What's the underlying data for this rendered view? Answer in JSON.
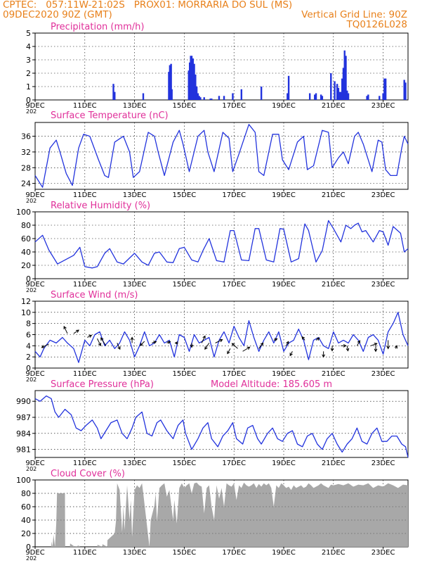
{
  "header": {
    "line1_left": "CPTEC:   057:11W-21:02S   PROX01: MORRARIA DO SUL (MS)",
    "line2_left": "09DEC2020 90Z (GMT)",
    "line2_right": "Vertical Grid Line: 90Z",
    "line3_right": "TQ0126L028"
  },
  "colors": {
    "header": "#e8801a",
    "panel_title": "#e0309a",
    "series": "#2233dd",
    "cloud": "#a8a8a8",
    "wind_arrow": "#000000"
  },
  "x_axis": {
    "start_day": 9,
    "end_day": 24,
    "ticks": [
      {
        "day": 9,
        "label": "9DEC"
      },
      {
        "day": 11,
        "label": "11DEC"
      },
      {
        "day": 13,
        "label": "13DEC"
      },
      {
        "day": 15,
        "label": "15DEC"
      },
      {
        "day": 17,
        "label": "17DEC"
      },
      {
        "day": 19,
        "label": "19DEC"
      },
      {
        "day": 21,
        "label": "21DEC"
      },
      {
        "day": 23,
        "label": "23DEC"
      }
    ],
    "year_marker": "202"
  },
  "chart_data": [
    {
      "id": "precip",
      "type": "bar",
      "title": "Precipitation (mm/h)",
      "ylim": [
        0,
        5
      ],
      "yticks": [
        0,
        1,
        2,
        3,
        4,
        5
      ],
      "grid": true,
      "x_unit": "day of December 2020",
      "x": [
        12.15,
        12.2,
        13.35,
        14.38,
        14.42,
        14.47,
        14.5,
        15.18,
        15.22,
        15.26,
        15.3,
        15.35,
        15.4,
        15.45,
        15.5,
        15.55,
        15.6,
        15.65,
        15.8,
        16.05,
        16.1,
        16.4,
        16.6,
        16.95,
        17.3,
        18.1,
        19.15,
        19.2,
        20.05,
        20.25,
        20.3,
        20.5,
        20.55,
        20.9,
        21.05,
        21.15,
        21.2,
        21.25,
        21.3,
        21.35,
        21.4,
        21.45,
        21.5,
        21.55,
        21.6,
        22.35,
        22.4,
        22.85,
        23.0,
        23.05,
        23.1,
        23.85,
        23.9
      ],
      "values": [
        1.2,
        0.6,
        0.5,
        2.1,
        2.6,
        2.7,
        0.8,
        2.2,
        2.8,
        3.3,
        3.3,
        3.1,
        2.7,
        1.9,
        1.0,
        0.5,
        0.3,
        0.2,
        0.2,
        0.1,
        0.1,
        0.3,
        0.3,
        0.5,
        0.8,
        1.0,
        0.5,
        1.8,
        0.5,
        0.4,
        0.5,
        0.4,
        0.3,
        2.0,
        1.4,
        1.2,
        0.9,
        0.6,
        0.6,
        1.6,
        2.4,
        3.7,
        3.3,
        0.7,
        0.5,
        0.3,
        0.4,
        0.3,
        0.5,
        1.6,
        1.6,
        1.5,
        1.3
      ]
    },
    {
      "id": "temp",
      "type": "line",
      "title": "Surface Temperature (nC)",
      "ylim": [
        22.5,
        39.5
      ],
      "yticks": [
        24,
        28,
        32,
        36
      ],
      "grid": true,
      "x_unit": "day of December 2020",
      "x": [
        9.0,
        9.3,
        9.6,
        9.85,
        10.0,
        10.25,
        10.5,
        10.75,
        10.95,
        11.2,
        11.55,
        11.8,
        11.95,
        12.2,
        12.55,
        12.8,
        12.95,
        13.2,
        13.55,
        13.8,
        13.95,
        14.2,
        14.55,
        14.8,
        14.95,
        15.2,
        15.55,
        15.8,
        15.95,
        16.2,
        16.55,
        16.8,
        16.95,
        17.2,
        17.6,
        17.85,
        18.0,
        18.2,
        18.55,
        18.8,
        18.95,
        19.2,
        19.55,
        19.8,
        19.95,
        20.2,
        20.55,
        20.8,
        20.95,
        21.2,
        21.4,
        21.6,
        21.85,
        22.0,
        22.2,
        22.55,
        22.8,
        22.95,
        23.1,
        23.3,
        23.55,
        23.75,
        23.85,
        24.0
      ],
      "values": [
        26,
        23,
        33,
        35,
        32,
        26.5,
        23.5,
        33,
        36.5,
        36,
        30,
        26,
        25.5,
        34.5,
        36,
        32,
        25.5,
        27,
        37,
        36,
        32,
        26,
        34.5,
        37.5,
        34,
        27,
        36,
        37.5,
        32,
        27,
        37,
        35.5,
        27,
        31.5,
        39,
        37,
        27,
        26,
        36.5,
        36.5,
        30,
        27.5,
        34.5,
        36,
        27.5,
        28.5,
        37.5,
        37,
        28,
        30.5,
        32,
        29,
        36,
        37,
        34,
        27,
        35,
        34.5,
        27.5,
        26,
        26,
        33,
        36,
        34
      ]
    },
    {
      "id": "rh",
      "type": "line",
      "title": "Relative Humidity (%)",
      "ylim": [
        0,
        100
      ],
      "yticks": [
        0,
        20,
        40,
        60,
        80,
        100
      ],
      "grid": true,
      "x_unit": "day of December 2020",
      "x": [
        9.0,
        9.3,
        9.55,
        9.9,
        10.2,
        10.55,
        10.8,
        11.0,
        11.3,
        11.5,
        11.8,
        12.0,
        12.3,
        12.55,
        12.8,
        13.0,
        13.3,
        13.55,
        13.8,
        14.0,
        14.3,
        14.55,
        14.8,
        15.0,
        15.3,
        15.55,
        15.75,
        16.0,
        16.3,
        16.6,
        16.85,
        17.0,
        17.3,
        17.6,
        17.85,
        18.0,
        18.3,
        18.6,
        18.85,
        19.0,
        19.3,
        19.6,
        19.85,
        20.0,
        20.3,
        20.55,
        20.8,
        21.0,
        21.3,
        21.5,
        21.7,
        21.85,
        22.0,
        22.15,
        22.3,
        22.6,
        22.85,
        23.0,
        23.2,
        23.4,
        23.7,
        23.85,
        24.0
      ],
      "values": [
        55,
        65,
        43,
        22,
        28,
        35,
        47,
        18,
        16,
        18,
        38,
        45,
        25,
        22,
        31,
        38,
        25,
        20,
        38,
        40,
        25,
        24,
        45,
        47,
        28,
        25,
        42,
        60,
        27,
        25,
        72,
        72,
        28,
        27,
        75,
        75,
        28,
        25,
        75,
        74,
        25,
        30,
        82,
        72,
        25,
        42,
        87,
        75,
        55,
        80,
        75,
        80,
        83,
        70,
        72,
        55,
        72,
        70,
        50,
        78,
        68,
        40,
        45
      ]
    },
    {
      "id": "wind",
      "type": "line",
      "title": "Surface Wind (m/s)",
      "ylim": [
        0,
        12
      ],
      "yticks": [
        0,
        2,
        4,
        6,
        8,
        10,
        12
      ],
      "grid": true,
      "x_unit": "day of December 2020",
      "x": [
        9.0,
        9.2,
        9.35,
        9.6,
        9.85,
        10.1,
        10.3,
        10.55,
        10.75,
        11.0,
        11.2,
        11.4,
        11.6,
        11.8,
        12.0,
        12.2,
        12.4,
        12.6,
        12.8,
        13.0,
        13.2,
        13.4,
        13.6,
        13.8,
        14.0,
        14.2,
        14.4,
        14.6,
        14.8,
        15.0,
        15.2,
        15.4,
        15.6,
        15.8,
        16.0,
        16.2,
        16.4,
        16.6,
        16.8,
        17.0,
        17.2,
        17.4,
        17.6,
        17.8,
        18.0,
        18.2,
        18.4,
        18.6,
        18.8,
        19.0,
        19.2,
        19.4,
        19.6,
        19.8,
        20.0,
        20.2,
        20.4,
        20.6,
        20.8,
        21.0,
        21.2,
        21.4,
        21.6,
        21.8,
        22.0,
        22.2,
        22.4,
        22.6,
        22.8,
        23.0,
        23.2,
        23.4,
        23.6,
        23.8,
        24.0
      ],
      "values": [
        3,
        2,
        3.5,
        5,
        4.5,
        5.5,
        4.5,
        3.5,
        1,
        5,
        4,
        6,
        6.5,
        4,
        5,
        3.5,
        4.5,
        6.5,
        5,
        2,
        4,
        6.5,
        4,
        4.5,
        6,
        4.5,
        5,
        2,
        6,
        5.5,
        3,
        6,
        4.5,
        5,
        5.5,
        2,
        5,
        6.5,
        4.5,
        7.5,
        5.5,
        4,
        8.5,
        5.5,
        3,
        5,
        6.5,
        4.5,
        6.5,
        3,
        4.5,
        5,
        7,
        5,
        1.5,
        5,
        5.5,
        4,
        3.5,
        6.5,
        4.5,
        5,
        4.5,
        6,
        5,
        3,
        5.5,
        6,
        5,
        2.5,
        6.5,
        8,
        10,
        6,
        4
      ]
    },
    {
      "id": "pressure",
      "type": "line",
      "title": "Surface Pressure (hPa)",
      "ylim": [
        979.5,
        992
      ],
      "yticks": [
        981,
        984,
        987,
        990
      ],
      "grid": true,
      "x_unit": "day of December 2020",
      "x": [
        9.0,
        9.2,
        9.45,
        9.65,
        9.8,
        9.95,
        10.2,
        10.45,
        10.65,
        10.85,
        11.05,
        11.3,
        11.5,
        11.65,
        11.85,
        12.05,
        12.3,
        12.5,
        12.7,
        12.9,
        13.05,
        13.3,
        13.5,
        13.7,
        13.9,
        14.05,
        14.3,
        14.55,
        14.75,
        14.95,
        15.05,
        15.3,
        15.55,
        15.75,
        15.95,
        16.1,
        16.35,
        16.55,
        16.75,
        16.95,
        17.1,
        17.35,
        17.55,
        17.75,
        17.95,
        18.1,
        18.35,
        18.55,
        18.75,
        18.95,
        19.15,
        19.35,
        19.55,
        19.75,
        19.95,
        20.15,
        20.35,
        20.55,
        20.75,
        20.95,
        21.15,
        21.35,
        21.55,
        21.75,
        21.95,
        22.15,
        22.35,
        22.55,
        22.75,
        22.95,
        23.15,
        23.35,
        23.55,
        23.75,
        23.9,
        24.0
      ],
      "values": [
        990.5,
        990,
        991,
        990.5,
        988,
        987,
        988.5,
        987.5,
        985,
        984.5,
        985.5,
        986.5,
        985,
        983,
        984.5,
        986,
        986.5,
        984,
        983,
        985,
        987,
        988,
        984,
        983.5,
        986,
        986.5,
        984.5,
        983,
        985.5,
        986.5,
        984,
        981,
        983,
        985,
        986,
        983,
        981.5,
        983.5,
        984.5,
        986,
        983,
        982,
        985,
        985.5,
        983,
        982,
        984,
        985,
        983,
        982.5,
        984,
        984.5,
        982,
        981.5,
        983.5,
        984,
        982,
        981,
        983,
        984,
        982,
        980.5,
        982,
        983,
        985,
        982.5,
        982,
        984,
        985,
        982.5,
        982.5,
        983.5,
        983.5,
        982,
        981.5,
        979.5
      ]
    },
    {
      "id": "cloud",
      "type": "area",
      "title": "Cloud Cover (%)",
      "ylim": [
        0,
        100
      ],
      "yticks": [
        0,
        20,
        40,
        60,
        80,
        100
      ],
      "grid": true,
      "x_unit": "day of December 2020",
      "x": [
        9.0,
        9.65,
        9.66,
        9.7,
        9.74,
        9.8,
        9.85,
        9.88,
        10.2,
        10.21,
        10.4,
        10.41,
        10.6,
        10.75,
        10.8,
        11.5,
        11.51,
        11.7,
        11.71,
        11.9,
        11.91,
        12.2,
        12.25,
        12.3,
        12.4,
        12.5,
        12.55,
        12.6,
        12.7,
        12.8,
        12.85,
        12.9,
        13.0,
        13.1,
        13.2,
        13.3,
        13.35,
        13.6,
        13.65,
        13.8,
        13.85,
        13.9,
        14.0,
        14.1,
        14.2,
        14.3,
        14.4,
        14.5,
        14.55,
        14.6,
        14.7,
        14.8,
        14.9,
        15.0,
        15.1,
        15.2,
        15.3,
        15.4,
        15.5,
        15.6,
        15.7,
        15.8,
        15.9,
        16.0,
        16.1,
        16.2,
        16.3,
        16.4,
        16.5,
        16.6,
        16.7,
        16.8,
        16.9,
        17.0,
        17.1,
        17.2,
        17.3,
        17.4,
        17.5,
        17.6,
        17.7,
        17.8,
        17.9,
        18.0,
        18.1,
        18.2,
        18.3,
        18.4,
        18.5,
        18.6,
        18.7,
        18.8,
        18.9,
        19.0,
        19.1,
        19.2,
        19.3,
        19.4,
        19.5,
        19.6,
        19.7,
        19.8,
        19.9,
        20.0,
        20.1,
        20.2,
        20.3,
        20.4,
        20.5,
        20.6,
        20.7,
        20.8,
        20.9,
        21.0,
        21.2,
        21.4,
        21.6,
        21.8,
        22.0,
        22.2,
        22.4,
        22.6,
        22.8,
        23.0,
        23.2,
        23.4,
        23.6,
        23.8,
        24.0
      ],
      "values": [
        0,
        0,
        8,
        0,
        18,
        0,
        35,
        80,
        80,
        0,
        0,
        5,
        0,
        2,
        0,
        0,
        3,
        0,
        4,
        0,
        10,
        20,
        38,
        95,
        85,
        22,
        60,
        25,
        92,
        40,
        70,
        15,
        85,
        92,
        88,
        95,
        80,
        0,
        40,
        62,
        80,
        38,
        88,
        92,
        95,
        75,
        85,
        55,
        40,
        70,
        35,
        88,
        95,
        88,
        92,
        95,
        80,
        95,
        96,
        92,
        90,
        50,
        88,
        92,
        60,
        40,
        92,
        72,
        88,
        60,
        95,
        92,
        90,
        95,
        70,
        92,
        88,
        96,
        92,
        90,
        92,
        95,
        88,
        94,
        90,
        95,
        92,
        95,
        88,
        60,
        92,
        88,
        95,
        92,
        88,
        90,
        85,
        92,
        88,
        90,
        92,
        88,
        90,
        95,
        92,
        88,
        90,
        92,
        95,
        92,
        90,
        88,
        93,
        92,
        94,
        92,
        95,
        90,
        93,
        92,
        95,
        88,
        92,
        90,
        95,
        92,
        88,
        93,
        92
      ]
    }
  ],
  "panel_titles": {
    "precip": "Precipitation (mm/h)",
    "temp": "Surface Temperature (nC)",
    "rh": "Relative Humidity (%)",
    "wind": "Surface Wind (m/s)",
    "pressure": "Surface Pressure (hPa)",
    "pressure_extra": "Model Altitude: 185.605 m",
    "cloud": "Cloud Cover (%)"
  },
  "wind_arrows": {
    "units": "m/s",
    "vectors": [
      {
        "day": 9.55,
        "speed": 4.3,
        "u": -2.5,
        "v": -1.2,
        "y": 4.3
      },
      {
        "day": 10.3,
        "speed": 6.2,
        "u": -1.2,
        "v": 2.5,
        "y": 6.2
      },
      {
        "day": 10.55,
        "speed": 6.2,
        "u": 1.8,
        "v": 1.2,
        "y": 6.2
      },
      {
        "day": 11.1,
        "speed": 5.5,
        "u": 1.5,
        "v": 0.8,
        "y": 5.5
      },
      {
        "day": 11.5,
        "speed": 5.3,
        "u": 1.2,
        "v": -2.5,
        "y": 5.3
      },
      {
        "day": 11.85,
        "speed": 4.0,
        "u": -1.8,
        "v": 2.8,
        "y": 4.0
      },
      {
        "day": 12.3,
        "speed": 4.5,
        "u": 1.0,
        "v": -2.2,
        "y": 4.5
      },
      {
        "day": 12.9,
        "speed": 4.5,
        "u": 0.0,
        "v": 2.0,
        "y": 4.5
      },
      {
        "day": 13.4,
        "speed": 4.8,
        "u": -1.5,
        "v": -1.5,
        "y": 4.8
      },
      {
        "day": 13.7,
        "speed": 4.5,
        "u": 1.5,
        "v": 0.5,
        "y": 4.5
      },
      {
        "day": 14.3,
        "speed": 4.5,
        "u": 1.2,
        "v": 0.5,
        "y": 4.5
      },
      {
        "day": 14.75,
        "speed": 4.5,
        "u": -1.0,
        "v": 0.0,
        "y": 4.5
      },
      {
        "day": 15.3,
        "speed": 4.5,
        "u": 0.0,
        "v": -1.5,
        "y": 4.5
      },
      {
        "day": 15.7,
        "speed": 4.5,
        "u": 1.2,
        "v": 2.5,
        "y": 4.5
      },
      {
        "day": 16.0,
        "speed": 4.5,
        "u": -1.5,
        "v": -2.2,
        "y": 4.5
      },
      {
        "day": 16.25,
        "speed": 4.5,
        "u": 2.5,
        "v": 1.2,
        "y": 4.5
      },
      {
        "day": 16.85,
        "speed": 3.5,
        "u": -1.0,
        "v": -1.8,
        "y": 3.5
      },
      {
        "day": 17.15,
        "speed": 3.5,
        "u": -2.0,
        "v": 1.8,
        "y": 3.5
      },
      {
        "day": 17.35,
        "speed": 3.0,
        "u": 2.5,
        "v": 1.5,
        "y": 3.0
      },
      {
        "day": 18.0,
        "speed": 3.5,
        "u": 1.5,
        "v": 2.0,
        "y": 3.5
      },
      {
        "day": 18.6,
        "speed": 5.0,
        "u": 1.2,
        "v": 0.5,
        "y": 5.0
      },
      {
        "day": 19.1,
        "speed": 4.0,
        "u": 0.8,
        "v": 1.5,
        "y": 4.0
      },
      {
        "day": 19.35,
        "speed": 3.0,
        "u": -0.8,
        "v": -1.5,
        "y": 3.0
      },
      {
        "day": 19.85,
        "speed": 5.0,
        "u": -1.0,
        "v": 1.2,
        "y": 5.0
      },
      {
        "day": 20.3,
        "speed": 5.0,
        "u": 1.2,
        "v": 0.8,
        "y": 5.0
      },
      {
        "day": 20.6,
        "speed": 3.0,
        "u": 0.0,
        "v": -2.0,
        "y": 3.0
      },
      {
        "day": 20.95,
        "speed": 4.0,
        "u": 0.0,
        "v": -1.8,
        "y": 4.0
      },
      {
        "day": 21.3,
        "speed": 4.0,
        "u": 1.8,
        "v": 0.0,
        "y": 4.0
      },
      {
        "day": 21.55,
        "speed": 4.0,
        "u": 0.3,
        "v": -1.8,
        "y": 4.0
      },
      {
        "day": 21.95,
        "speed": 4.0,
        "u": 1.0,
        "v": 1.8,
        "y": 4.0
      },
      {
        "day": 22.5,
        "speed": 4.0,
        "u": 2.2,
        "v": 0.8,
        "y": 4.0
      },
      {
        "day": 22.7,
        "speed": 4.0,
        "u": 0.0,
        "v": -2.0,
        "y": 4.0
      },
      {
        "day": 23.2,
        "speed": 5.0,
        "u": 0.0,
        "v": -3.0,
        "y": 5.0
      },
      {
        "day": 23.5,
        "speed": 3.5,
        "u": 0.5,
        "v": 1.0,
        "y": 3.5
      }
    ]
  }
}
